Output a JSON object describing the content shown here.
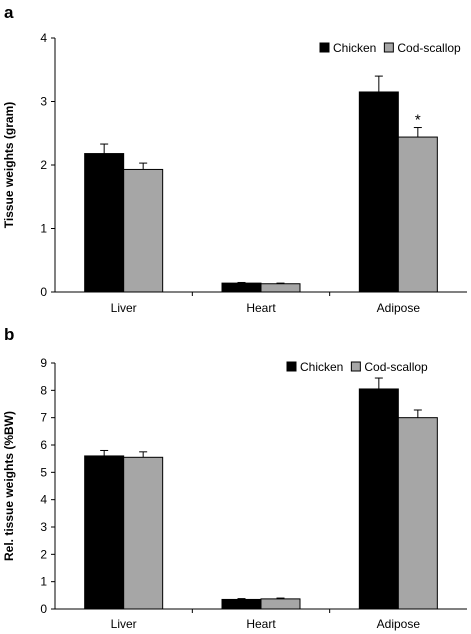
{
  "colors": {
    "chicken": "#000000",
    "cod_scallop": "#a6a6a6"
  },
  "chart_data": [
    {
      "panel": "a",
      "type": "bar",
      "ylabel": "Tissue weights (gram)",
      "categories": [
        "Liver",
        "Heart",
        "Adipose"
      ],
      "ylim": [
        0,
        4
      ],
      "yticks": [
        "0",
        "1",
        "2",
        "3",
        "4"
      ],
      "legend_position": "top-right",
      "series": [
        {
          "name": "Chicken",
          "values": [
            2.18,
            0.14,
            3.15
          ],
          "errors": [
            0.15,
            0.01,
            0.25
          ]
        },
        {
          "name": "Cod-scallop",
          "values": [
            1.93,
            0.13,
            2.44
          ],
          "errors": [
            0.1,
            0.01,
            0.15
          ]
        }
      ],
      "annotations": [
        {
          "text": "*",
          "category": "Adipose",
          "series": "Cod-scallop"
        }
      ]
    },
    {
      "panel": "b",
      "type": "bar",
      "ylabel": "Rel. tissue weights (%BW)",
      "categories": [
        "Liver",
        "Heart",
        "Adipose"
      ],
      "ylim": [
        0,
        9
      ],
      "yticks": [
        "0",
        "1",
        "2",
        "3",
        "4",
        "5",
        "6",
        "7",
        "8",
        "9"
      ],
      "legend_position": "top-right",
      "series": [
        {
          "name": "Chicken",
          "values": [
            5.6,
            0.35,
            8.05
          ],
          "errors": [
            0.2,
            0.03,
            0.4
          ]
        },
        {
          "name": "Cod-scallop",
          "values": [
            5.55,
            0.37,
            7.0
          ],
          "errors": [
            0.2,
            0.03,
            0.28
          ]
        }
      ],
      "annotations": []
    }
  ]
}
